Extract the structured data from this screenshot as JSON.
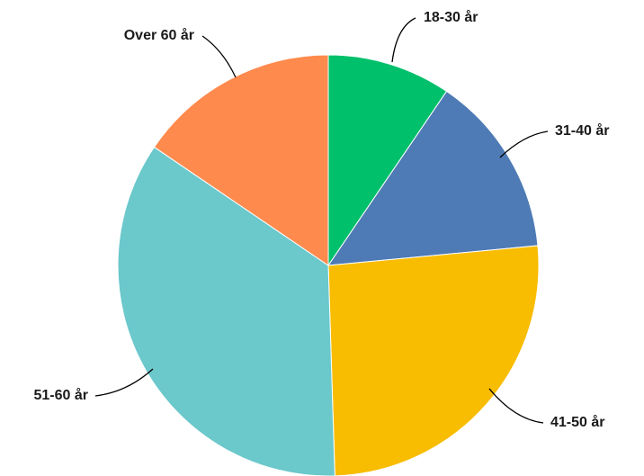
{
  "chart_data": {
    "type": "pie",
    "categories": [
      "18-30 år",
      "31-40 år",
      "41-50 år",
      "51-60 år",
      "Over 60 år"
    ],
    "values": [
      9.5,
      14,
      26,
      35,
      15.5
    ],
    "colors": [
      "#00c06b",
      "#4e7bb5",
      "#f8bc00",
      "#6bc8cb",
      "#ff8a4d"
    ],
    "start_angle": "top (12 o'clock)",
    "direction": "clockwise",
    "legend": "none (direct labels with leader lines)"
  }
}
